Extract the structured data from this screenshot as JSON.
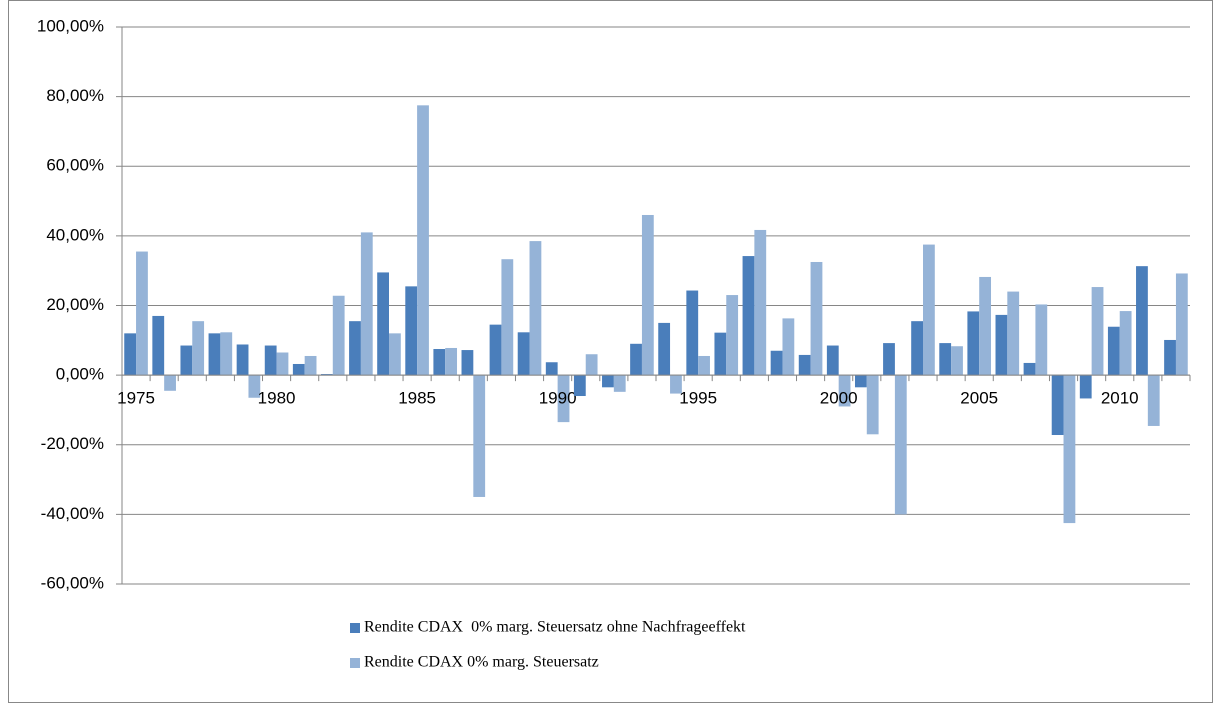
{
  "chart_data": {
    "type": "bar",
    "categories": [
      "1975",
      null,
      null,
      null,
      null,
      "1980",
      null,
      null,
      null,
      null,
      "1985",
      null,
      null,
      null,
      null,
      "1990",
      null,
      null,
      null,
      null,
      "1995",
      null,
      null,
      null,
      null,
      "2000",
      null,
      null,
      null,
      null,
      "2005",
      null,
      null,
      null,
      null,
      "2010",
      null,
      null
    ],
    "series": [
      {
        "name": "Rendite CDAX  0% marg. Steuersatz ohne Nachfrageeffekt",
        "color": "#4a7ebb",
        "values": [
          12,
          17,
          8.5,
          12,
          8.8,
          8.5,
          3.2,
          0.3,
          15.5,
          29.5,
          25.5,
          7.5,
          7.2,
          14.5,
          12.3,
          3.7,
          -6,
          -3.5,
          9,
          15,
          24.3,
          12.2,
          34.2,
          7,
          5.8,
          8.5,
          -3.5,
          9.2,
          15.5,
          9.2,
          18.3,
          17.3,
          3.5,
          -17.2,
          -6.7,
          13.9,
          31.3,
          10.1
        ]
      },
      {
        "name": "Rendite CDAX 0% marg. Steuersatz",
        "color": "#95b3d7",
        "values": [
          35.5,
          -4.5,
          15.5,
          12.3,
          -6.5,
          6.5,
          5.5,
          22.8,
          41,
          12,
          77.5,
          7.8,
          -35,
          33.3,
          38.5,
          -13.5,
          6,
          -4.8,
          46,
          -5.3,
          5.5,
          23,
          41.7,
          16.3,
          32.5,
          -9,
          -17,
          -40,
          37.5,
          8.3,
          28.2,
          24,
          20.3,
          -42.5,
          25.3,
          18.4,
          -14.6,
          29.2
        ]
      }
    ],
    "ylim": [
      -60,
      100
    ],
    "yticks": [
      {
        "value": -60,
        "label": "-60,00%"
      },
      {
        "value": -40,
        "label": "-40,00%"
      },
      {
        "value": -20,
        "label": "-20,00%"
      },
      {
        "value": 0,
        "label": "0,00%"
      },
      {
        "value": 20,
        "label": "20,00%"
      },
      {
        "value": 40,
        "label": "40,00%"
      },
      {
        "value": 60,
        "label": "60,00%"
      },
      {
        "value": 80,
        "label": "80,00%"
      },
      {
        "value": 100,
        "label": "100,00%"
      }
    ],
    "grid": true,
    "legend": "bottom"
  }
}
